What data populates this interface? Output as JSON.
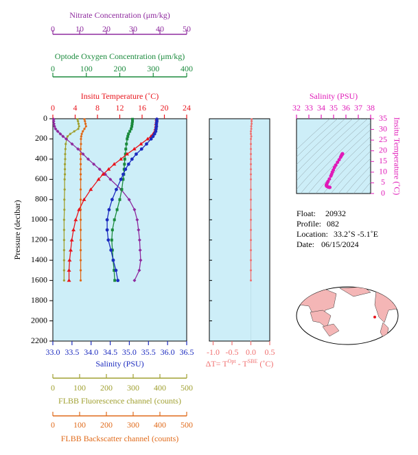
{
  "chart_data": [
    {
      "type": "profile",
      "ylabel": "Pressure (decibar)",
      "ylim": [
        0,
        2200
      ],
      "yticks": [
        0,
        200,
        400,
        600,
        800,
        1000,
        1200,
        1400,
        1600,
        1800,
        2000,
        2200
      ],
      "plot_color": "#cdeef8",
      "pressure": [
        5,
        25,
        50,
        75,
        100,
        125,
        150,
        175,
        200,
        250,
        300,
        350,
        400,
        450,
        500,
        550,
        600,
        700,
        800,
        900,
        1000,
        1100,
        1200,
        1300,
        1400,
        1500,
        1600
      ],
      "axes": [
        {
          "label": "Nitrate Concentration (μm/kg)",
          "color": "#8e2a9e",
          "xlim": [
            0,
            50
          ],
          "xticks": [
            0,
            10,
            20,
            30,
            40,
            50
          ]
        },
        {
          "label": "Optode Oxygen Concentration (μm/kg)",
          "color": "#1a8a3c",
          "xlim": [
            0,
            400
          ],
          "xticks": [
            0,
            100,
            200,
            300,
            400
          ]
        },
        {
          "label": "Insitu Temperature (˚C)",
          "color": "#e8141c",
          "xlim": [
            0,
            24
          ],
          "xticks": [
            0,
            4,
            8,
            12,
            16,
            20,
            24
          ]
        },
        {
          "label": "Salinity (PSU)",
          "color": "#1c2bbf",
          "xlim": [
            33.0,
            36.5
          ],
          "xticks": [
            {
              "value": 33.0,
              "label": "33.0"
            },
            33.5,
            {
              "value": 34.0,
              "label": "34.0"
            },
            34.5,
            {
              "value": 35.0,
              "label": "35.0"
            },
            35.5,
            {
              "value": 36.0,
              "label": "36.0"
            },
            36.5
          ]
        },
        {
          "label": "FLBB Fluorescence channel (counts)",
          "color": "#a0a030",
          "xlim": [
            0,
            500
          ],
          "xticks": [
            0,
            100,
            200,
            300,
            400,
            500
          ]
        },
        {
          "label": "FLBB Backscatter channel (counts)",
          "color": "#e06a1a",
          "xlim": [
            0,
            500
          ],
          "xticks": [
            0,
            100,
            200,
            300,
            400,
            500
          ]
        }
      ],
      "series": [
        {
          "axis": 4,
          "color": "#a0a030",
          "values": [
            92,
            94,
            96,
            98,
            95,
            80,
            65,
            55,
            52,
            48,
            47,
            46,
            46,
            45,
            45,
            45,
            44,
            44,
            43,
            43,
            42,
            42,
            42,
            42,
            42,
            42,
            42
          ]
        },
        {
          "axis": 5,
          "color": "#e06a1a",
          "values": [
            118,
            120,
            122,
            124,
            118,
            112,
            108,
            106,
            105,
            105,
            104,
            104,
            104,
            104,
            104,
            104,
            104,
            104,
            104,
            104,
            104,
            104,
            104,
            104,
            104,
            104,
            104
          ]
        },
        {
          "axis": 0,
          "color": "#8e2a9e",
          "values": [
            0.3,
            0.3,
            0.4,
            0.6,
            1.0,
            1.8,
            2.8,
            3.8,
            5.0,
            7.2,
            9.4,
            11.3,
            13.2,
            15.3,
            17.5,
            19.6,
            21.5,
            25.5,
            28.5,
            30.5,
            31.5,
            32.0,
            32.4,
            32.6,
            32.8,
            32.3,
            30.5
          ]
        },
        {
          "axis": 1,
          "color": "#1a8a3c",
          "values": [
            238,
            238,
            237,
            236,
            234,
            230,
            226,
            224,
            222,
            220,
            218,
            217,
            215,
            214,
            213,
            212,
            210,
            206,
            200,
            192,
            184,
            178,
            176,
            178,
            180,
            183,
            185
          ]
        },
        {
          "axis": 2,
          "color": "#e8141c",
          "values": [
            18.6,
            18.6,
            18.5,
            18.5,
            18.4,
            18.3,
            18.0,
            17.6,
            17.0,
            15.8,
            14.6,
            13.3,
            12.2,
            11.0,
            10.0,
            9.0,
            8.2,
            6.8,
            5.6,
            4.7,
            4.1,
            3.7,
            3.4,
            3.2,
            3.0,
            2.9,
            2.9
          ]
        },
        {
          "axis": 3,
          "color": "#1c2bbf",
          "values": [
            35.72,
            35.72,
            35.71,
            35.71,
            35.7,
            35.69,
            35.66,
            35.62,
            35.57,
            35.45,
            35.32,
            35.18,
            35.07,
            34.98,
            34.9,
            34.84,
            34.78,
            34.66,
            34.55,
            34.47,
            34.42,
            34.42,
            34.45,
            34.52,
            34.58,
            34.65,
            34.7
          ]
        }
      ]
    },
    {
      "type": "delta",
      "xlabel": [
        "ΔT= T",
        "Opt",
        " - T",
        "SBE",
        " (˚C)"
      ],
      "color": "#f07070",
      "plot_color": "#cdeef8",
      "xlim": [
        -1.1,
        0.5
      ],
      "xticks": [
        {
          "value": -1.0,
          "label": "-1.0"
        },
        -0.5,
        {
          "value": 0.0,
          "label": "0.0"
        },
        0.5
      ],
      "values": [
        0.02,
        0.02,
        0.02,
        0.01,
        0.01,
        0.0,
        0.0,
        0.01,
        0.0,
        0.0,
        0.0,
        0.0,
        0.0,
        0.0,
        0.0,
        0.0,
        0.0,
        0.0,
        0.0,
        0.0,
        0.0,
        0.0,
        0.0,
        0.0,
        0.0,
        0.0,
        0.0
      ]
    },
    {
      "type": "ts",
      "xlabel": "Salinity (PSU)",
      "ylabel": "Insitu Temperature (˚C)",
      "color": "#e01ab8",
      "plot_color": "#cdeef8",
      "xlim": [
        32,
        38
      ],
      "xticks": [
        32,
        33,
        34,
        35,
        36,
        37,
        38
      ],
      "ylim": [
        0,
        35
      ],
      "yticks": [
        0,
        5,
        10,
        15,
        20,
        25,
        30,
        35
      ]
    }
  ],
  "float_info": [
    [
      "Float:",
      "20932"
    ],
    [
      "Profile:",
      "082"
    ],
    [
      "Location:",
      "33.2˚S  -5.1˚E"
    ],
    [
      "Date:",
      "06/15/2024"
    ]
  ]
}
